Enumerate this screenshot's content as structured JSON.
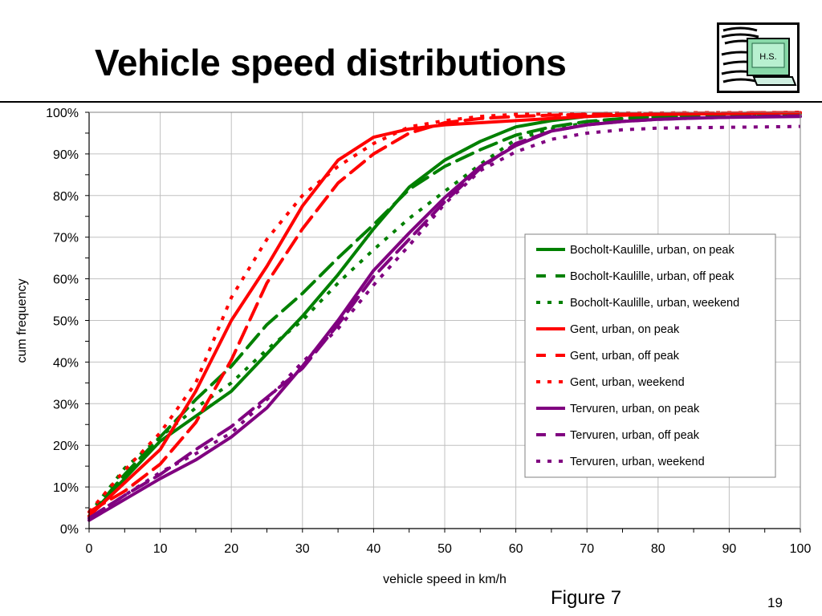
{
  "slide": {
    "title": "Vehicle speed distributions",
    "figure_caption": "Figure 7",
    "page_number": "19",
    "logo_text": "H.S."
  },
  "chart_data": {
    "type": "line",
    "title": "",
    "xlabel": "vehicle speed in km/h",
    "ylabel": "cum frequency",
    "xlim": [
      0,
      100
    ],
    "ylim": [
      0,
      1
    ],
    "x_ticks": [
      0,
      10,
      20,
      30,
      40,
      50,
      60,
      70,
      80,
      90,
      100
    ],
    "x_tick_labels": [
      "0",
      "10",
      "20",
      "30",
      "40",
      "50",
      "60",
      "70",
      "80",
      "90",
      "100"
    ],
    "y_ticks": [
      0,
      0.1,
      0.2,
      0.3,
      0.4,
      0.5,
      0.6,
      0.7,
      0.8,
      0.9,
      1.0
    ],
    "y_tick_labels": [
      "0%",
      "10%",
      "20%",
      "30%",
      "40%",
      "50%",
      "60%",
      "70%",
      "80%",
      "90%",
      "100%"
    ],
    "grid": true,
    "legend_position": "right",
    "x": [
      0,
      5,
      10,
      15,
      20,
      25,
      30,
      35,
      40,
      45,
      50,
      55,
      60,
      65,
      70,
      75,
      80,
      85,
      90,
      95,
      100
    ],
    "series": [
      {
        "name": "Bocholt-Kaulille, urban, on peak",
        "color": "#008000",
        "dash": "solid",
        "values": [
          0.03,
          0.12,
          0.21,
          0.27,
          0.33,
          0.42,
          0.51,
          0.61,
          0.72,
          0.82,
          0.885,
          0.93,
          0.965,
          0.98,
          0.99,
          0.993,
          0.995,
          0.996,
          0.997,
          0.998,
          0.999
        ]
      },
      {
        "name": "Bocholt-Kaulille, urban, off peak",
        "color": "#008000",
        "dash": "dashed",
        "values": [
          0.03,
          0.13,
          0.22,
          0.31,
          0.39,
          0.49,
          0.565,
          0.65,
          0.73,
          0.815,
          0.87,
          0.91,
          0.945,
          0.965,
          0.978,
          0.985,
          0.99,
          0.993,
          0.995,
          0.996,
          0.997
        ]
      },
      {
        "name": "Bocholt-Kaulille, urban, weekend",
        "color": "#008000",
        "dash": "dotted",
        "values": [
          0.035,
          0.145,
          0.22,
          0.29,
          0.35,
          0.43,
          0.5,
          0.59,
          0.67,
          0.745,
          0.81,
          0.875,
          0.935,
          0.96,
          0.975,
          0.983,
          0.988,
          0.991,
          0.993,
          0.995,
          0.996
        ]
      },
      {
        "name": "Gent, urban, on peak",
        "color": "#ff0000",
        "dash": "solid",
        "values": [
          0.03,
          0.11,
          0.19,
          0.33,
          0.5,
          0.63,
          0.775,
          0.885,
          0.94,
          0.96,
          0.97,
          0.975,
          0.98,
          0.985,
          0.99,
          0.993,
          0.995,
          0.996,
          0.997,
          0.998,
          0.999
        ]
      },
      {
        "name": "Gent, urban, off peak",
        "color": "#ff0000",
        "dash": "dashed",
        "values": [
          0.04,
          0.09,
          0.155,
          0.255,
          0.405,
          0.59,
          0.72,
          0.83,
          0.9,
          0.95,
          0.975,
          0.985,
          0.99,
          0.993,
          0.995,
          0.996,
          0.997,
          0.998,
          0.998,
          0.999,
          0.999
        ]
      },
      {
        "name": "Gent, urban, weekend",
        "color": "#ff0000",
        "dash": "dotted",
        "values": [
          0.04,
          0.14,
          0.23,
          0.35,
          0.555,
          0.695,
          0.8,
          0.87,
          0.925,
          0.965,
          0.98,
          0.99,
          0.995,
          0.996,
          0.997,
          0.998,
          0.998,
          0.999,
          0.999,
          0.999,
          1.0
        ]
      },
      {
        "name": "Tervuren, urban, on peak",
        "color": "#800080",
        "dash": "solid",
        "values": [
          0.02,
          0.07,
          0.12,
          0.165,
          0.22,
          0.29,
          0.39,
          0.5,
          0.62,
          0.71,
          0.795,
          0.87,
          0.92,
          0.955,
          0.97,
          0.978,
          0.983,
          0.986,
          0.988,
          0.989,
          0.99
        ]
      },
      {
        "name": "Tervuren, urban, off peak",
        "color": "#800080",
        "dash": "dashed",
        "values": [
          0.025,
          0.08,
          0.13,
          0.19,
          0.245,
          0.315,
          0.385,
          0.49,
          0.605,
          0.695,
          0.785,
          0.865,
          0.925,
          0.955,
          0.97,
          0.978,
          0.983,
          0.986,
          0.988,
          0.99,
          0.991
        ]
      },
      {
        "name": "Tervuren, urban, weekend",
        "color": "#800080",
        "dash": "dotted",
        "values": [
          0.025,
          0.08,
          0.135,
          0.18,
          0.23,
          0.31,
          0.4,
          0.48,
          0.585,
          0.68,
          0.78,
          0.86,
          0.905,
          0.935,
          0.95,
          0.958,
          0.962,
          0.963,
          0.964,
          0.965,
          0.966
        ]
      }
    ]
  }
}
